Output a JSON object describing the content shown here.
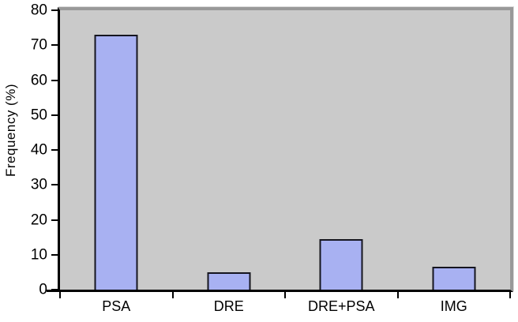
{
  "chart_data": {
    "type": "bar",
    "title": "",
    "categories": [
      "PSA",
      "DRE",
      "DRE+PSA",
      "IMG"
    ],
    "values": [
      73,
      5,
      14.5,
      6.5
    ],
    "xlabel": "",
    "ylabel": "Frequency  (%)",
    "ylim": [
      0,
      80
    ],
    "yticks": [
      0,
      10,
      20,
      30,
      40,
      50,
      60,
      70,
      80
    ],
    "grid": false,
    "legend": "none",
    "colors": {
      "bar_fill": "#a8b1f2",
      "bar_border": "#15151f",
      "plot_background": "#cacaca",
      "frame": "#999999",
      "axis": "#000000",
      "text": "#000000",
      "page_background": "#ffffff"
    }
  }
}
